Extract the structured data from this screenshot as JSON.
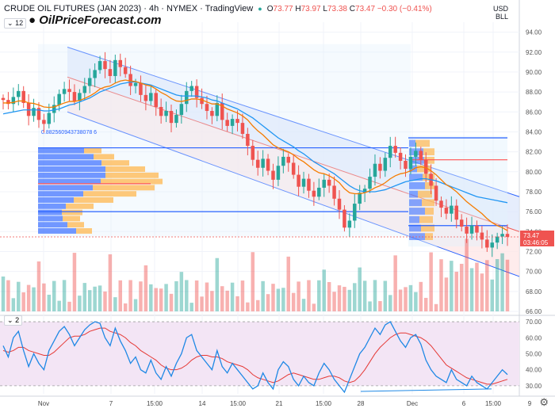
{
  "header": {
    "symbol": "CRUDE OIL FUTURES (JAN 2023) · 4h · NYMEX · TradingView",
    "ohlc": [
      {
        "k": "O",
        "v": "73.77"
      },
      {
        "k": "H",
        "v": "73.97"
      },
      {
        "k": "L",
        "v": "73.38"
      },
      {
        "k": "C",
        "v": "73.47 −0.30 (−0.41%)"
      }
    ],
    "badge": "12",
    "currency": "USD",
    "unit": "BLL"
  },
  "watermark": "OilPriceForecast.com",
  "annotation": "0.882560943738078 6",
  "price_label": {
    "price": "73.47",
    "time": "03:46:05",
    "color": "#ef5350"
  },
  "rsi_badge": "2",
  "colors": {
    "up": "#26a69a",
    "down": "#ef5350",
    "ema": "#f57c00",
    "sma": "#2196f3",
    "channel": "#2962ff",
    "poc": "#ff5252",
    "rsi": "#1e88e5",
    "rsi_ma": "#e53935",
    "rsi_bg": "#f3e5f5"
  },
  "chart_data": [
    {
      "type": "candlestick",
      "title": "",
      "ylim": [
        66,
        95
      ],
      "y_ticks": [
        "94.00",
        "92.00",
        "90.00",
        "88.00",
        "86.00",
        "84.00",
        "82.00",
        "80.00",
        "78.00",
        "76.00",
        "74.00",
        "72.00",
        "70.00",
        "68.00",
        "66.00"
      ],
      "x_ticks": [
        "Nov",
        "7",
        "15:00",
        "14",
        "15:00",
        "21",
        "15:00",
        "28",
        "Dec",
        "6",
        "15:00",
        "9"
      ],
      "closes": [
        87.2,
        86.8,
        87.5,
        88.1,
        86.9,
        85.6,
        86.4,
        85.2,
        84.8,
        85.9,
        86.7,
        87.8,
        88.3,
        88.0,
        87.1,
        87.9,
        88.6,
        89.4,
        90.2,
        91.1,
        90.3,
        89.6,
        91.2,
        90.5,
        89.8,
        88.6,
        88.9,
        87.7,
        87.1,
        87.9,
        86.5,
        85.6,
        86.1,
        84.9,
        85.7,
        86.8,
        88.1,
        88.6,
        87.4,
        86.8,
        86.1,
        85.6,
        86.9,
        85.2,
        84.6,
        85.3,
        84.9,
        83.8,
        82.6,
        81.2,
        80.4,
        81.3,
        80.1,
        79.2,
        80.6,
        81.5,
        80.9,
        79.7,
        78.5,
        79.3,
        78.1,
        77.5,
        78.4,
        79.2,
        78.6,
        77.3,
        76.2,
        74.4,
        75.1,
        76.8,
        77.9,
        78.3,
        79.5,
        80.8,
        80.1,
        81.4,
        82.6,
        81.9,
        81.1,
        80.3,
        81.5,
        82.1,
        81.2,
        79.8,
        78.6,
        77.1,
        76.4,
        75.8,
        76.6,
        75.2,
        74.5,
        73.8,
        74.6,
        73.9,
        73.2,
        72.4,
        72.9,
        73.5,
        73.77,
        73.47
      ],
      "ema": [
        86.9,
        86.9,
        86.95,
        87.1,
        87.1,
        86.9,
        86.85,
        86.7,
        86.5,
        86.45,
        86.5,
        86.7,
        86.9,
        87.05,
        87.05,
        87.15,
        87.35,
        87.6,
        87.9,
        88.3,
        88.5,
        88.6,
        88.9,
        89.1,
        89.2,
        89.1,
        89.05,
        88.9,
        88.7,
        88.6,
        88.3,
        87.95,
        87.7,
        87.35,
        87.1,
        87.05,
        87.15,
        87.3,
        87.3,
        87.2,
        87.0,
        86.8,
        86.8,
        86.6,
        86.3,
        86.1,
        85.9,
        85.6,
        85.2,
        84.6,
        84.1,
        83.7,
        83.2,
        82.7,
        82.4,
        82.2,
        82.0,
        81.7,
        81.3,
        81.0,
        80.6,
        80.2,
        79.9,
        79.8,
        79.6,
        79.3,
        78.9,
        78.3,
        77.9,
        77.8,
        77.8,
        77.9,
        78.1,
        78.4,
        78.6,
        78.9,
        79.3,
        79.6,
        79.8,
        79.9,
        80.1,
        80.4,
        80.5,
        80.4,
        80.1,
        79.7,
        79.2,
        78.7,
        78.4,
        78.0,
        77.5,
        77.0,
        76.6,
        76.2,
        75.8,
        75.3,
        74.9,
        74.6,
        74.4,
        74.1
      ],
      "sma": [
        85.8,
        85.9,
        86.0,
        86.1,
        86.2,
        86.2,
        86.2,
        86.2,
        86.1,
        86.1,
        86.2,
        86.3,
        86.5,
        86.7,
        86.8,
        87.0,
        87.2,
        87.4,
        87.7,
        88.0,
        88.2,
        88.4,
        88.6,
        88.8,
        88.9,
        89.0,
        89.0,
        88.9,
        88.8,
        88.7,
        88.5,
        88.3,
        88.1,
        87.9,
        87.7,
        87.6,
        87.6,
        87.6,
        87.6,
        87.5,
        87.4,
        87.2,
        87.1,
        86.9,
        86.7,
        86.5,
        86.3,
        86.0,
        85.7,
        85.4,
        85.0,
        84.6,
        84.2,
        83.8,
        83.4,
        83.1,
        82.8,
        82.5,
        82.1,
        81.8,
        81.4,
        81.0,
        80.7,
        80.4,
        80.1,
        79.8,
        79.4,
        79.0,
        78.6,
        78.3,
        78.1,
        78.0,
        78.0,
        78.0,
        78.1,
        78.2,
        78.4,
        78.6,
        78.8,
        79.0,
        79.1,
        79.2,
        79.3,
        79.3,
        79.2,
        79.1,
        78.9,
        78.7,
        78.5,
        78.3,
        78.1,
        77.9,
        77.7,
        77.5,
        77.4,
        77.3,
        77.2,
        77.1,
        77.0,
        76.9
      ],
      "horizontal_levels": [
        {
          "price": 82.4,
          "color": "#2962ff"
        },
        {
          "price": 78.8,
          "color": "#ff5252"
        },
        {
          "price": 76.0,
          "color": "#2962ff"
        },
        {
          "price": 83.4,
          "color": "#2962ff"
        },
        {
          "price": 81.2,
          "color": "#ff5252"
        },
        {
          "price": 74.6,
          "color": "#2962ff"
        }
      ],
      "last_price": 73.47
    },
    {
      "type": "line",
      "title": "",
      "ylim": [
        25,
        72
      ],
      "y_ticks": [
        "70.00",
        "60.00",
        "50.00",
        "40.00",
        "30.00"
      ],
      "bands": [
        70,
        30
      ],
      "rsi": [
        55,
        48,
        60,
        64,
        52,
        42,
        50,
        44,
        40,
        52,
        58,
        64,
        67,
        62,
        55,
        60,
        65,
        68,
        70,
        69,
        60,
        55,
        66,
        58,
        52,
        44,
        48,
        40,
        38,
        46,
        38,
        34,
        42,
        36,
        44,
        50,
        60,
        62,
        52,
        48,
        44,
        40,
        52,
        42,
        38,
        44,
        40,
        36,
        32,
        28,
        30,
        38,
        32,
        28,
        40,
        45,
        42,
        34,
        30,
        36,
        32,
        30,
        38,
        44,
        40,
        34,
        30,
        26,
        34,
        42,
        50,
        54,
        60,
        66,
        62,
        68,
        70,
        64,
        58,
        54,
        60,
        62,
        56,
        46,
        40,
        36,
        34,
        32,
        40,
        34,
        32,
        30,
        36,
        32,
        30,
        28,
        32,
        36,
        40,
        37
      ],
      "rsi_ma": [
        52,
        51,
        52,
        54,
        54,
        52,
        51,
        50,
        49,
        49,
        51,
        54,
        57,
        60,
        61,
        61,
        62,
        64,
        65,
        66,
        66,
        64,
        63,
        62,
        60,
        57,
        55,
        52,
        50,
        48,
        46,
        43,
        41,
        40,
        40,
        41,
        43,
        46,
        48,
        49,
        49,
        48,
        48,
        47,
        45,
        44,
        43,
        42,
        40,
        37,
        35,
        34,
        33,
        32,
        33,
        35,
        37,
        38,
        37,
        36,
        35,
        34,
        34,
        35,
        36,
        36,
        35,
        33,
        32,
        33,
        36,
        40,
        45,
        50,
        54,
        57,
        60,
        62,
        63,
        63,
        62,
        61,
        60,
        58,
        55,
        51,
        47,
        43,
        41,
        39,
        37,
        35,
        34,
        33,
        32,
        31,
        31,
        32,
        33,
        34
      ]
    }
  ]
}
